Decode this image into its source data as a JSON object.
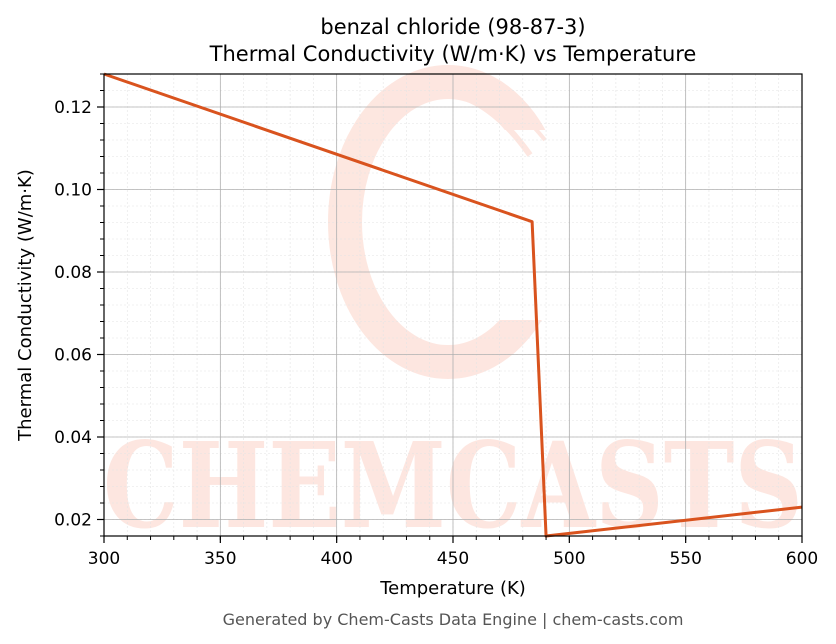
{
  "chart_data": {
    "type": "line",
    "title_line1": "benzal chloride (98-87-3)",
    "title_line2": "Thermal Conductivity (W/m·K) vs Temperature",
    "xlabel": "Temperature (K)",
    "ylabel": "Thermal Conductivity (W/m·K)",
    "xlim": [
      300,
      600
    ],
    "ylim": [
      0.016,
      0.128
    ],
    "xticks": [
      300,
      350,
      400,
      450,
      500,
      550,
      600
    ],
    "yticks": [
      0.02,
      0.04,
      0.06,
      0.08,
      0.1,
      0.12
    ],
    "ytick_labels": [
      "0.02",
      "0.04",
      "0.06",
      "0.08",
      "0.10",
      "0.12"
    ],
    "grid": true,
    "series": [
      {
        "color": "#d9531e",
        "x": [
          300,
          484,
          490,
          600
        ],
        "y": [
          0.128,
          0.0922,
          0.016,
          0.023
        ]
      }
    ]
  },
  "footer": "Generated by Chem-Casts Data Engine | chem-casts.com",
  "watermark_text": "CHEMCASTS"
}
